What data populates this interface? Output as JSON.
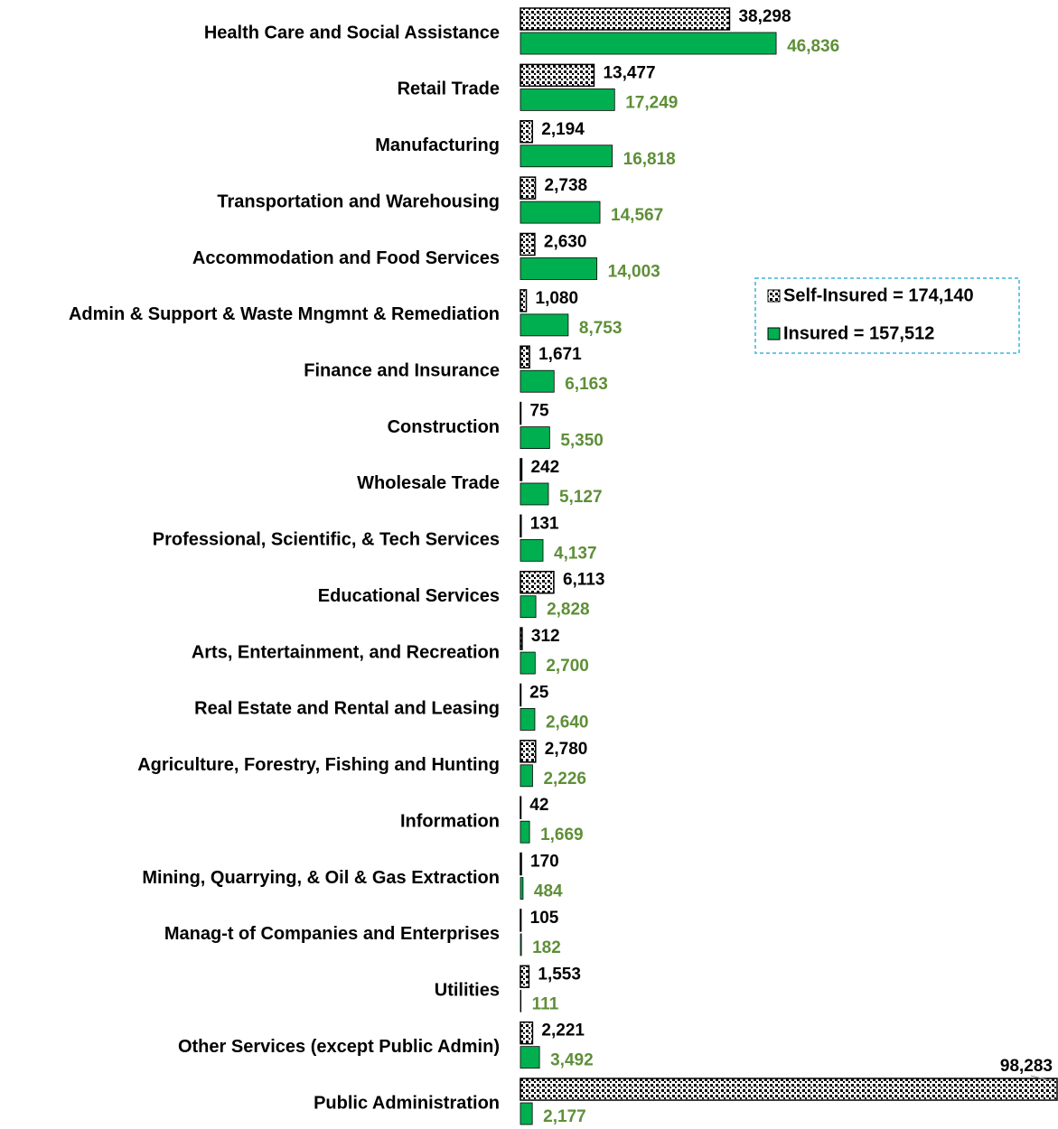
{
  "chart_data": {
    "type": "hbar",
    "categories": [
      "Health Care and Social Assistance",
      "Retail Trade",
      "Manufacturing",
      "Transportation and Warehousing",
      "Accommodation and Food Services",
      "Admin & Support & Waste Mngmnt & Remediation",
      "Finance and Insurance",
      "Construction",
      "Wholesale Trade",
      "Professional, Scientific, & Tech Services",
      "Educational Services",
      "Arts, Entertainment, and Recreation",
      "Real Estate and Rental and Leasing",
      "Agriculture, Forestry, Fishing and Hunting",
      "Information",
      "Mining, Quarrying, & Oil & Gas Extraction",
      "Manag-t of Companies and Enterprises",
      "Utilities",
      "Other Services (except Public Admin)",
      "Public Administration"
    ],
    "series": [
      {
        "name": "Self-Insured = 174,140",
        "color": "#000000",
        "pattern": "dots",
        "label_color": "#000000",
        "values": [
          38298,
          13477,
          2194,
          2738,
          2630,
          1080,
          1671,
          75,
          242,
          131,
          6113,
          312,
          25,
          2780,
          42,
          170,
          105,
          1553,
          2221,
          98283
        ],
        "value_labels": [
          "38,298",
          "13,477",
          "2,194",
          "2,738",
          "2,630",
          "1,080",
          "1,671",
          "75",
          "242",
          "131",
          "6,113",
          "312",
          "25",
          "2,780",
          "42",
          "170",
          "105",
          "1,553",
          "2,221",
          "98,283"
        ]
      },
      {
        "name": "Insured = 157,512",
        "color": "#00b050",
        "label_color": "#5e8f38",
        "values": [
          46836,
          17249,
          16818,
          14567,
          14003,
          8753,
          6163,
          5350,
          5127,
          4137,
          2828,
          2700,
          2640,
          2226,
          1669,
          484,
          182,
          111,
          3492,
          2177
        ],
        "value_labels": [
          "46,836",
          "17,249",
          "16,818",
          "14,567",
          "14,003",
          "8,753",
          "6,163",
          "5,350",
          "5,127",
          "4,137",
          "2,828",
          "2,700",
          "2,640",
          "2,226",
          "1,669",
          "484",
          "182",
          "111",
          "3,492",
          "2,177"
        ]
      }
    ],
    "legend": "right"
  }
}
